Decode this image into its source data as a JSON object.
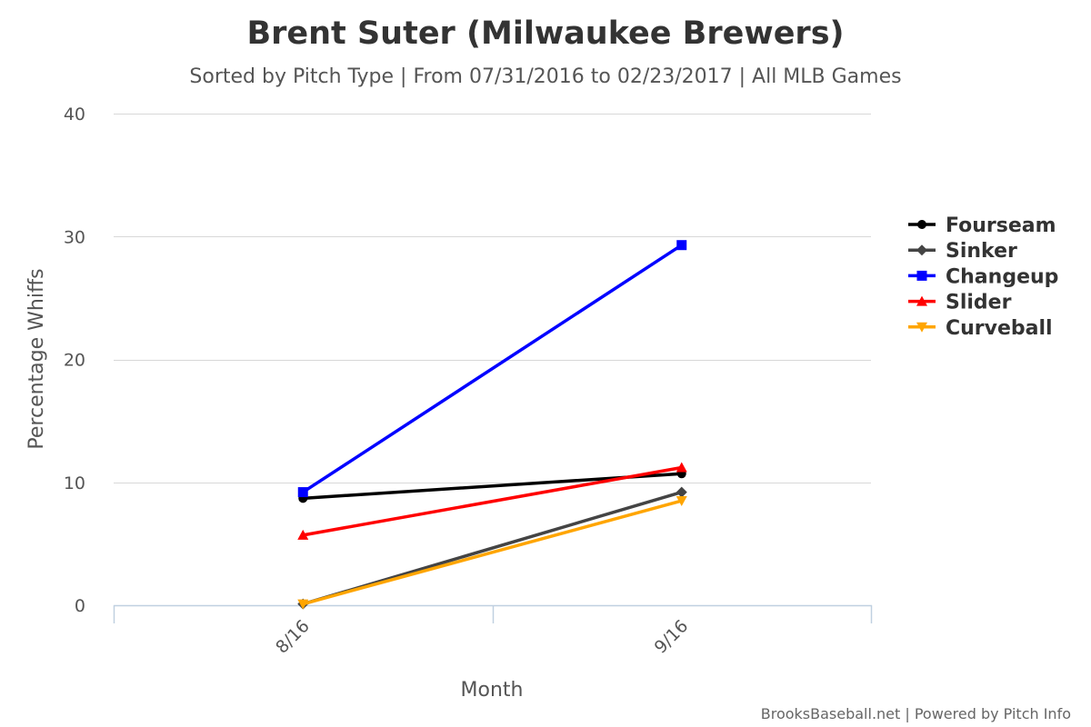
{
  "chart_data": {
    "type": "line",
    "title": "Brent Suter (Milwaukee Brewers)",
    "subtitle": "Sorted by Pitch Type | From 07/31/2016 to 02/23/2017 | All MLB Games",
    "xlabel": "Month",
    "ylabel": "Percentage Whiffs",
    "categories": [
      "8/16",
      "9/16"
    ],
    "ylim": [
      0,
      40
    ],
    "yticks": [
      "0",
      "10",
      "20",
      "30",
      "40"
    ],
    "grid": true,
    "legend_position": "right",
    "series": [
      {
        "name": "Fourseam",
        "values": [
          8.7,
          10.7
        ],
        "color": "#000000",
        "marker": "circle"
      },
      {
        "name": "Sinker",
        "values": [
          0.1,
          9.2
        ],
        "color": "#444444",
        "marker": "diamond"
      },
      {
        "name": "Changeup",
        "values": [
          9.2,
          29.3
        ],
        "color": "#0000ff",
        "marker": "square"
      },
      {
        "name": "Slider",
        "values": [
          5.7,
          11.2
        ],
        "color": "#ff0000",
        "marker": "triangle"
      },
      {
        "name": "Curveball",
        "values": [
          0.1,
          8.5
        ],
        "color": "#ffa500",
        "marker": "triangle-down"
      }
    ]
  },
  "credits": "BrooksBaseball.net | Powered by Pitch Info"
}
